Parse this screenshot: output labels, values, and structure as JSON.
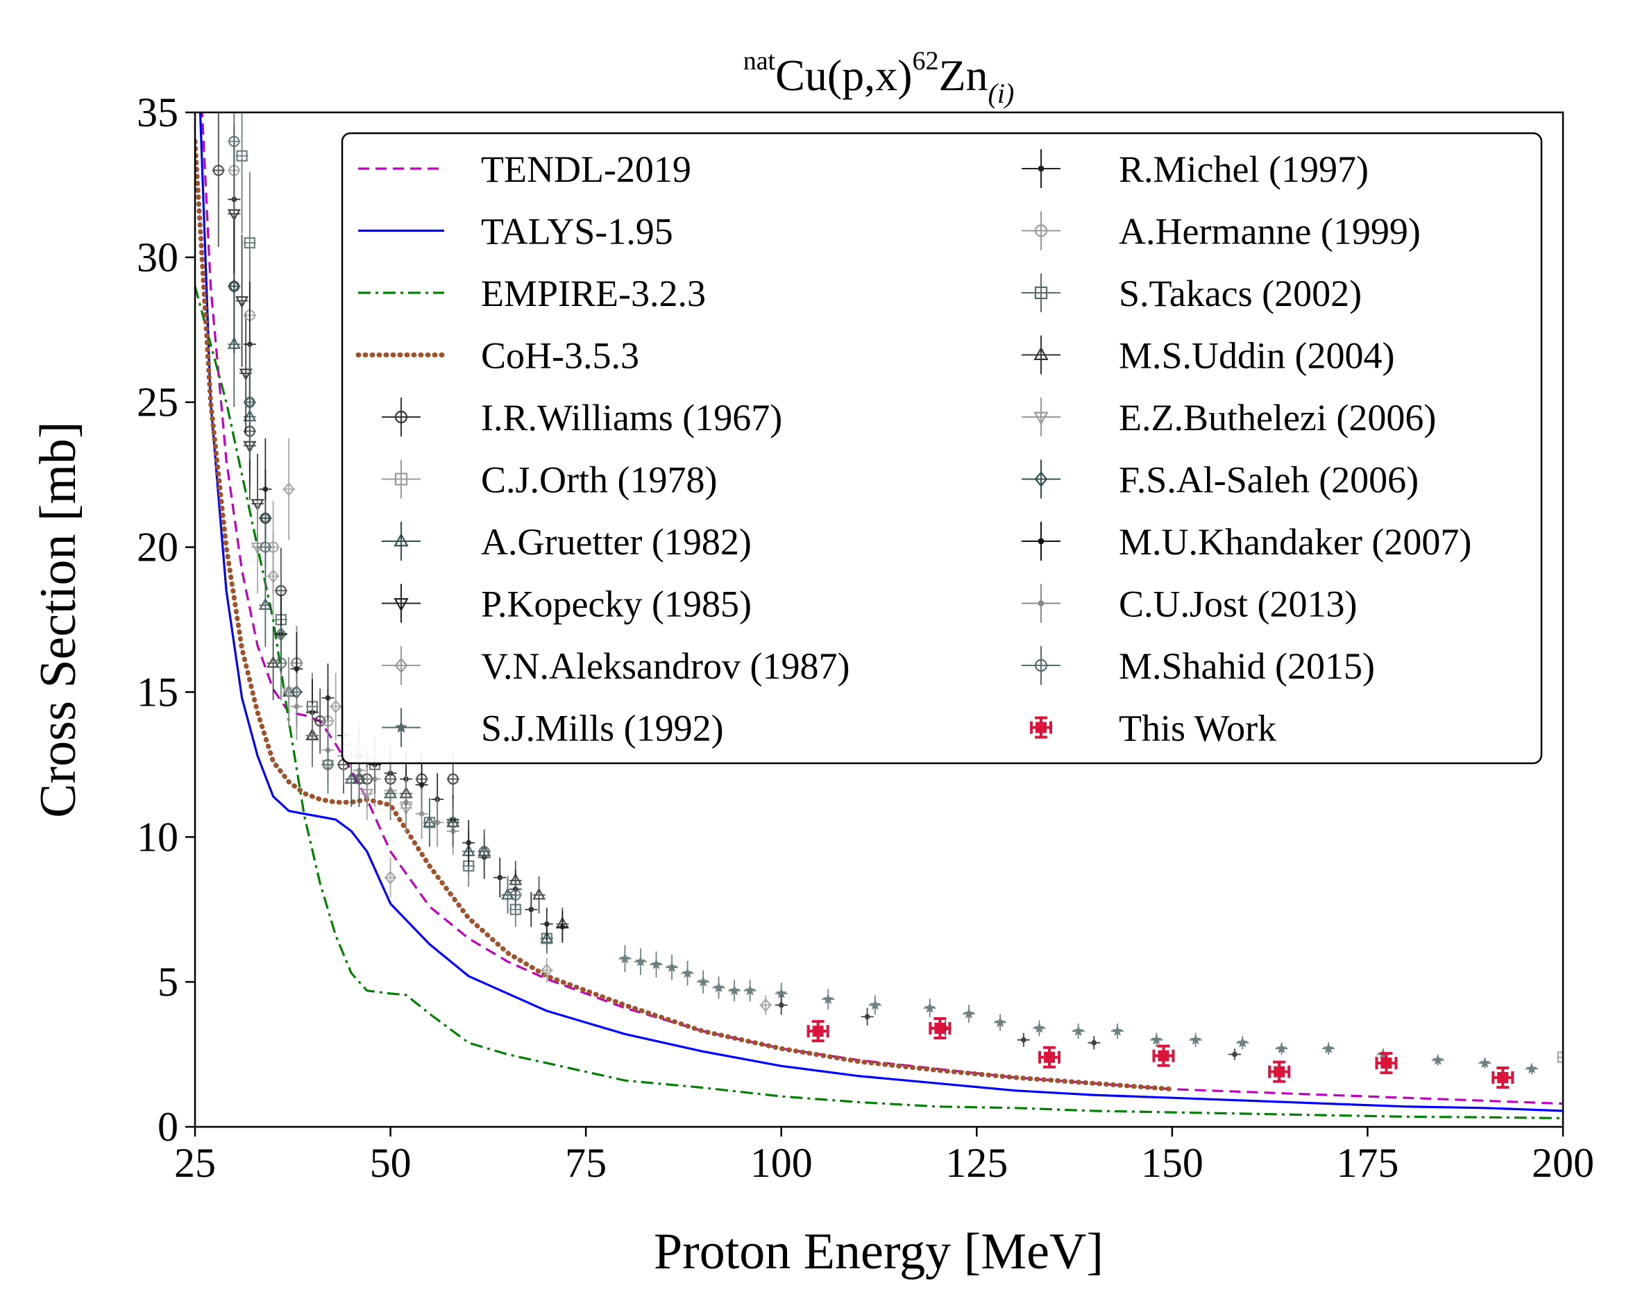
{
  "chart_data": {
    "type": "line",
    "title": {
      "sup_left": "nat",
      "main_a": "Cu(p,x)",
      "sup_mid": "62",
      "main_b": "Zn",
      "sub": "(i)"
    },
    "xlabel": "Proton Energy [MeV]",
    "ylabel": "Cross Section [mb]",
    "xlim": [
      25,
      200
    ],
    "ylim": [
      0,
      35
    ],
    "xticks": [
      25,
      50,
      75,
      100,
      125,
      150,
      175,
      200
    ],
    "yticks": [
      0,
      5,
      10,
      15,
      20,
      25,
      30,
      35
    ],
    "legend_position": "upper-right",
    "model_series": [
      {
        "name": "TENDL-2019",
        "color": "#bf00bf",
        "style": "dashed",
        "x": [
          25,
          27,
          29,
          31,
          33,
          35,
          37,
          39,
          41,
          43,
          45,
          47,
          50,
          55,
          60,
          65,
          70,
          75,
          80,
          90,
          100,
          110,
          120,
          130,
          140,
          150,
          160,
          170,
          180,
          190,
          200
        ],
        "y": [
          40,
          29,
          23,
          19.2,
          16.6,
          15.1,
          14.3,
          14.2,
          14.0,
          13.2,
          12.3,
          11.3,
          9.5,
          7.6,
          6.5,
          5.7,
          5.1,
          4.6,
          4.1,
          3.3,
          2.7,
          2.3,
          2.0,
          1.7,
          1.5,
          1.3,
          1.2,
          1.1,
          1.0,
          0.9,
          0.8
        ]
      },
      {
        "name": "TALYS-1.95",
        "color": "#0000ff",
        "style": "solid",
        "x": [
          25,
          27,
          29,
          31,
          33,
          35,
          37,
          39,
          41,
          43,
          45,
          47,
          50,
          55,
          60,
          65,
          70,
          75,
          80,
          90,
          100,
          110,
          120,
          130,
          140,
          150,
          160,
          170,
          180,
          190,
          200
        ],
        "y": [
          40,
          25,
          18.5,
          14.8,
          12.8,
          11.4,
          10.9,
          10.8,
          10.7,
          10.6,
          10.2,
          9.5,
          7.7,
          6.3,
          5.2,
          4.6,
          4.0,
          3.6,
          3.2,
          2.6,
          2.1,
          1.75,
          1.5,
          1.25,
          1.1,
          1.0,
          0.9,
          0.8,
          0.7,
          0.65,
          0.55
        ]
      },
      {
        "name": "EMPIRE-3.2.3",
        "color": "#008000",
        "style": "dashdot",
        "x": [
          25,
          27,
          29,
          31,
          33,
          35,
          37,
          39,
          41,
          43,
          45,
          47,
          50,
          52,
          55,
          60,
          65,
          70,
          75,
          80,
          90,
          100,
          110,
          120,
          130,
          140,
          150,
          160,
          170,
          180,
          190,
          200
        ],
        "y": [
          29,
          27,
          25,
          22.5,
          20,
          17.5,
          14,
          10.7,
          8.4,
          6.6,
          5.3,
          4.7,
          4.6,
          4.55,
          3.9,
          2.9,
          2.5,
          2.2,
          1.9,
          1.6,
          1.35,
          1.05,
          0.85,
          0.7,
          0.65,
          0.55,
          0.5,
          0.45,
          0.4,
          0.35,
          0.33,
          0.3
        ]
      },
      {
        "name": "CoH-3.5.3",
        "color": "#a0522d",
        "style": "dotted",
        "x": [
          25,
          27,
          29,
          31,
          33,
          35,
          37,
          39,
          41,
          43,
          45,
          47,
          50,
          55,
          60,
          65,
          70,
          75,
          80,
          90,
          100,
          110,
          120,
          130,
          140,
          150
        ],
        "y": [
          34,
          25,
          20,
          16.5,
          14.3,
          12.6,
          11.9,
          11.5,
          11.3,
          11.2,
          11.2,
          11.3,
          11.1,
          9.0,
          7.2,
          6.0,
          5.2,
          4.7,
          4.2,
          3.3,
          2.7,
          2.25,
          1.95,
          1.7,
          1.5,
          1.3
        ]
      }
    ],
    "experimental_series": [
      {
        "name": "I.R.Williams (1967)",
        "marker": "circle-open",
        "color": "#333333",
        "x": [
          28,
          30,
          32,
          34,
          36,
          38,
          41,
          44,
          47,
          50,
          54,
          58
        ],
        "y": [
          33,
          29,
          24,
          21,
          18.5,
          16.0,
          14.0,
          12.5,
          12.0,
          12.0,
          12.0,
          12.0
        ]
      },
      {
        "name": "C.J.Orth (1978)",
        "marker": "square-open",
        "color": "#999999",
        "x": [
          200
        ],
        "y": [
          2.4
        ]
      },
      {
        "name": "A.Gruetter (1982)",
        "marker": "triangle-up-open",
        "color": "#2f4f4f",
        "x": [
          30,
          32,
          34,
          37,
          40,
          45,
          50,
          55,
          60,
          65,
          70
        ],
        "y": [
          27,
          24.5,
          18,
          15,
          13.5,
          12,
          11.5,
          10.5,
          9.5,
          8.0,
          6.5
        ]
      },
      {
        "name": "P.Kopecky (1985)",
        "marker": "triangle-down-open",
        "color": "#222222",
        "x": [
          30,
          31,
          31.5,
          32,
          33
        ],
        "y": [
          31.5,
          28.5,
          26,
          23.5,
          21.5
        ]
      },
      {
        "name": "V.N.Aleksandrov (1987)",
        "marker": "diamond-open",
        "color": "#999999",
        "x": [
          35,
          37,
          43,
          50,
          70,
          98
        ],
        "y": [
          19,
          22,
          14.5,
          8.6,
          5.4,
          4.2
        ]
      },
      {
        "name": "S.J.Mills (1992)",
        "marker": "star",
        "color": "#556b6b",
        "x": [
          80,
          82,
          84,
          86,
          88,
          90,
          92,
          94,
          96,
          100,
          106,
          112,
          119,
          124,
          128,
          133,
          138,
          143,
          148,
          153,
          159,
          164,
          170,
          177,
          184,
          190,
          196
        ],
        "y": [
          5.8,
          5.7,
          5.6,
          5.5,
          5.3,
          5.0,
          4.8,
          4.7,
          4.7,
          4.6,
          4.4,
          4.2,
          4.1,
          3.9,
          3.6,
          3.4,
          3.3,
          3.3,
          3.0,
          3.0,
          2.9,
          2.7,
          2.7,
          2.5,
          2.3,
          2.2,
          2.0
        ]
      },
      {
        "name": "R.Michel (1997)",
        "marker": "point",
        "color": "#222222",
        "x": [
          100,
          111,
          121,
          131,
          140,
          158
        ],
        "y": [
          4.2,
          3.8,
          3.4,
          3.0,
          2.9,
          2.5
        ]
      },
      {
        "name": "A.Hermanne (1999)",
        "marker": "circle-open",
        "color": "#999999",
        "x": [
          30,
          32,
          35,
          38,
          42,
          46
        ],
        "y": [
          33,
          28,
          20,
          16,
          14,
          13
        ]
      },
      {
        "name": "S.Takacs (2002)",
        "marker": "square-open",
        "color": "#556b6b",
        "x": [
          31,
          32,
          36,
          40,
          48,
          55,
          60,
          66,
          70
        ],
        "y": [
          33.5,
          30.5,
          17.5,
          14.5,
          12.5,
          10.5,
          9.0,
          7.5,
          6.5
        ]
      },
      {
        "name": "M.S.Uddin (2004)",
        "marker": "triangle-up-open",
        "color": "#333333",
        "x": [
          35,
          40,
          46,
          52,
          58,
          62,
          66,
          69,
          72
        ],
        "y": [
          16,
          13.5,
          12,
          11.5,
          10.5,
          9.5,
          8.5,
          8.0,
          7.0
        ]
      },
      {
        "name": "E.Z.Buthelezi (2006)",
        "marker": "triangle-down-open",
        "color": "#999999",
        "x": [
          33,
          37,
          42,
          47,
          52
        ],
        "y": [
          20,
          15,
          12.5,
          11.5,
          11
        ]
      },
      {
        "name": "F.S.Al-Saleh (2006)",
        "marker": "diamond-open",
        "color": "#2f4f4f",
        "x": [
          30,
          32,
          34,
          36,
          38
        ],
        "y": [
          29,
          25,
          21,
          17,
          15
        ]
      },
      {
        "name": "M.U.Khandaker (2007)",
        "marker": "point",
        "color": "#111111",
        "x": [
          30,
          32,
          34,
          36,
          38,
          40,
          42,
          44,
          46,
          48,
          50,
          52,
          54,
          56,
          58,
          60,
          62,
          64,
          66,
          68,
          70,
          72
        ],
        "y": [
          32,
          27,
          22,
          17,
          15.8,
          14.3,
          14.8,
          13.5,
          12.8,
          12.5,
          12.2,
          12.0,
          11.8,
          11.3,
          10.6,
          9.8,
          9.3,
          8.6,
          8.2,
          7.5,
          7.0,
          6.9
        ]
      },
      {
        "name": "C.U.Jost (2013)",
        "marker": "point",
        "color": "#888888",
        "x": [
          38,
          40,
          42,
          44,
          46,
          48,
          50,
          52,
          54,
          56,
          58
        ],
        "y": [
          14.5,
          13.5,
          13.0,
          12.8,
          12.3,
          12.0,
          11.6,
          11.2,
          10.8,
          10.5,
          10.2
        ]
      },
      {
        "name": "M.Shahid (2015)",
        "marker": "circle-open",
        "color": "#556b6b",
        "x": [
          30,
          32,
          34,
          36,
          42,
          46,
          58,
          62,
          66
        ],
        "y": [
          34,
          25,
          20,
          16,
          12.5,
          12,
          10.5,
          9.5,
          8.0
        ]
      },
      {
        "name": "This Work",
        "marker": "errorbar-cross",
        "color": "#dc143c",
        "x": [
          104.7,
          120.3,
          134.3,
          148.9,
          163.7,
          177.4,
          192.3
        ],
        "y": [
          3.3,
          3.4,
          2.4,
          2.45,
          1.9,
          2.2,
          1.7
        ]
      }
    ]
  }
}
